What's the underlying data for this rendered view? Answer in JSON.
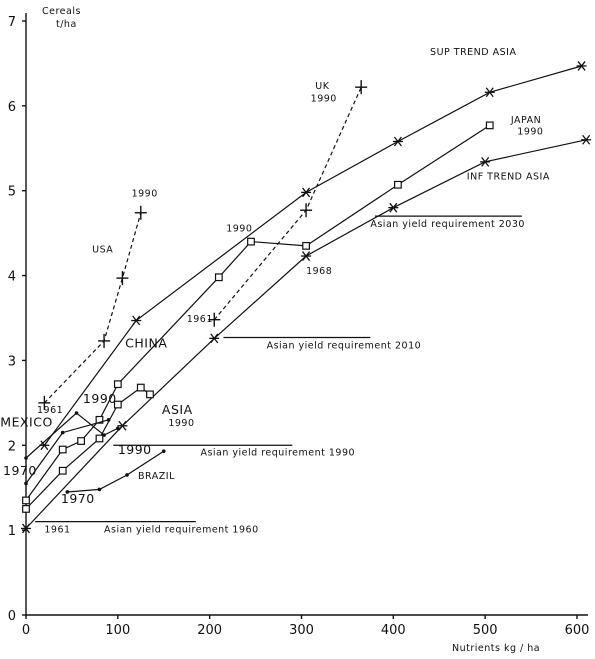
{
  "chart_data": {
    "type": "line",
    "title": "",
    "xlabel": "Nutrients kg / ha",
    "ylabel": "Cereals t/ha",
    "ylabel_line1": "Cereals",
    "ylabel_line2": "t/ha",
    "xlim": [
      0,
      600
    ],
    "ylim": [
      0,
      7
    ],
    "x_ticks": [
      0,
      100,
      200,
      300,
      400,
      500,
      600
    ],
    "y_ticks": [
      0,
      1,
      2,
      3,
      4,
      5,
      6,
      7
    ],
    "grid": false,
    "series": [
      {
        "name": "SUP TREND ASIA",
        "marker": "star",
        "dashed": false,
        "points": [
          [
            20,
            2.0
          ],
          [
            120,
            3.47
          ],
          [
            305,
            4.98
          ],
          [
            405,
            5.58
          ],
          [
            505,
            6.16
          ],
          [
            605,
            6.47
          ]
        ]
      },
      {
        "name": "JAPAN",
        "marker": "square",
        "dashed": false,
        "points": [
          [
            0,
            1.35
          ],
          [
            40,
            1.95
          ],
          [
            60,
            2.05
          ],
          [
            80,
            2.3
          ],
          [
            100,
            2.72
          ],
          [
            210,
            3.98
          ],
          [
            245,
            4.4
          ],
          [
            305,
            4.35
          ],
          [
            405,
            5.07
          ],
          [
            505,
            5.77
          ]
        ]
      },
      {
        "name": "INF TREND ASIA",
        "marker": "star",
        "dashed": false,
        "points": [
          [
            0,
            1.02
          ],
          [
            105,
            2.23
          ],
          [
            205,
            3.26
          ],
          [
            305,
            4.23
          ],
          [
            400,
            4.8
          ],
          [
            500,
            5.34
          ],
          [
            610,
            5.6
          ]
        ]
      },
      {
        "name": "USA",
        "marker": "plus",
        "dashed": true,
        "points": [
          [
            20,
            2.5
          ],
          [
            85,
            3.23
          ],
          [
            105,
            3.97
          ],
          [
            125,
            4.74
          ]
        ]
      },
      {
        "name": "UK",
        "marker": "plus",
        "dashed": true,
        "points": [
          [
            205,
            3.48
          ],
          [
            305,
            4.77
          ],
          [
            365,
            6.22
          ]
        ]
      },
      {
        "name": "ASIA",
        "marker": "square",
        "dashed": false,
        "points": [
          [
            0,
            1.25
          ],
          [
            40,
            1.7
          ],
          [
            80,
            2.08
          ],
          [
            100,
            2.48
          ],
          [
            125,
            2.68
          ],
          [
            135,
            2.6
          ]
        ]
      },
      {
        "name": "MEXICO",
        "marker": "dot",
        "dashed": false,
        "points": [
          [
            0,
            1.55
          ],
          [
            40,
            2.15
          ],
          [
            90,
            2.3
          ]
        ]
      },
      {
        "name": "CHINA",
        "marker": "dot",
        "dashed": false,
        "points": [
          [
            0,
            1.85
          ],
          [
            55,
            2.38
          ],
          [
            85,
            2.12
          ],
          [
            100,
            2.2
          ]
        ]
      },
      {
        "name": "BRAZIL",
        "marker": "dot",
        "dashed": false,
        "points": [
          [
            45,
            1.45
          ],
          [
            80,
            1.48
          ],
          [
            110,
            1.65
          ],
          [
            150,
            1.93
          ]
        ]
      }
    ],
    "reference_lines": [
      {
        "label": "Asian yield requirement 2030",
        "y": 4.7,
        "x_start": 380,
        "x_end": 540
      },
      {
        "label": "Asian yield requirement 2010",
        "y": 3.27,
        "x_start": 215,
        "x_end": 375
      },
      {
        "label": "Asian yield requirement 1990",
        "y": 2.0,
        "x_start": 95,
        "x_end": 290
      },
      {
        "label": "Asian yield requirement 1960",
        "y": 1.1,
        "x_start": 10,
        "x_end": 185
      }
    ],
    "annotations": [
      {
        "text": "SUP TREND ASIA",
        "x": 440,
        "y": 6.6,
        "size": "small"
      },
      {
        "text": "JAPAN",
        "x": 528,
        "y": 5.8,
        "size": "small"
      },
      {
        "text": "1990",
        "x": 535,
        "y": 5.66,
        "size": "small"
      },
      {
        "text": "INF TREND ASIA",
        "x": 480,
        "y": 5.13,
        "size": "small"
      },
      {
        "text": "UK",
        "x": 315,
        "y": 6.2,
        "size": "small"
      },
      {
        "text": "1990",
        "x": 310,
        "y": 6.05,
        "size": "small"
      },
      {
        "text": "1990",
        "x": 115,
        "y": 4.93,
        "size": "small"
      },
      {
        "text": "USA",
        "x": 72,
        "y": 4.27,
        "size": "small"
      },
      {
        "text": "1990",
        "x": 218,
        "y": 4.52,
        "size": "small"
      },
      {
        "text": "1968",
        "x": 305,
        "y": 4.02,
        "size": "small"
      },
      {
        "text": "1961",
        "x": 175,
        "y": 3.45,
        "size": "small"
      },
      {
        "text": "CHINA",
        "x": 108,
        "y": 3.15,
        "size": "large"
      },
      {
        "text": "ASIA",
        "x": 148,
        "y": 2.37,
        "size": "large"
      },
      {
        "text": "1990",
        "x": 155,
        "y": 2.23,
        "size": "small"
      },
      {
        "text": "1990",
        "x": 62,
        "y": 2.5,
        "size": "large"
      },
      {
        "text": "MEXICO",
        "x": -28,
        "y": 2.22,
        "size": "large"
      },
      {
        "text": "1961",
        "x": 12,
        "y": 2.38,
        "size": "small"
      },
      {
        "text": "1970",
        "x": -25,
        "y": 1.65,
        "size": "large"
      },
      {
        "text": "1990",
        "x": 100,
        "y": 1.9,
        "size": "large"
      },
      {
        "text": "BRAZIL",
        "x": 122,
        "y": 1.6,
        "size": "small"
      },
      {
        "text": "1970",
        "x": 38,
        "y": 1.32,
        "size": "large"
      },
      {
        "text": "1961",
        "x": 20,
        "y": 0.97,
        "size": "small"
      },
      {
        "text": "Asian yield requirement 2030",
        "x": 375,
        "y": 4.57,
        "size": "small"
      },
      {
        "text": "Asian yield requirement 2010",
        "x": 262,
        "y": 3.14,
        "size": "small"
      },
      {
        "text": "Asian yield requirement 1990",
        "x": 190,
        "y": 1.88,
        "size": "small"
      },
      {
        "text": "Asian yield requirement 1960",
        "x": 85,
        "y": 0.97,
        "size": "small"
      }
    ]
  }
}
